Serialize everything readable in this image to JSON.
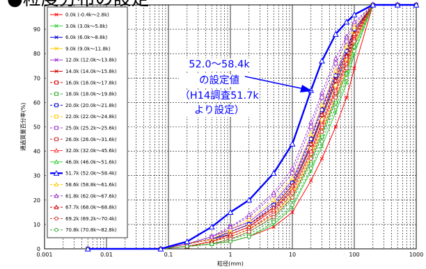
{
  "title": "●粒度分布の設定",
  "chart_data": {
    "type": "line",
    "x_scale": "log",
    "xlim": [
      0.001,
      1000
    ],
    "ylim": [
      0,
      100
    ],
    "xlabel": "粒径(mm)",
    "ylabel": "通過質量百分率(%)",
    "x_ticks": [
      "0.001",
      "0.01",
      "0.1",
      "1",
      "10",
      "100",
      "1000"
    ],
    "y_ticks": [
      "0",
      "10",
      "20",
      "30",
      "40",
      "50",
      "60",
      "70",
      "80",
      "90"
    ],
    "grid": true,
    "legend_position": "left",
    "x": [
      0.005,
      0.075,
      0.2,
      0.5,
      1,
      2,
      5,
      10,
      20,
      30,
      50,
      75,
      100,
      200,
      500,
      1000
    ],
    "series": [
      {
        "name": "0.0k (-0.4k～2.8k)",
        "color": "#ff0000",
        "dash": false,
        "marker": "x",
        "values": [
          0,
          0,
          1,
          2,
          3,
          5,
          9,
          15,
          28,
          37,
          50,
          62,
          74,
          100,
          100,
          100
        ]
      },
      {
        "name": "3.0k (3.0k～5.8k)",
        "color": "#33cc33",
        "dash": false,
        "marker": "x",
        "values": [
          0,
          0,
          1,
          2,
          3,
          5,
          10,
          17,
          32,
          42,
          56,
          68,
          80,
          100,
          100,
          100
        ]
      },
      {
        "name": "6.0k (6.0k～8.8k)",
        "color": "#0000cc",
        "dash": false,
        "marker": "x",
        "values": [
          0,
          0,
          2,
          4,
          6,
          9,
          16,
          25,
          42,
          54,
          68,
          78,
          88,
          100,
          100,
          100
        ]
      },
      {
        "name": "9.0k (9.0k～11.8k)",
        "color": "#ffcc00",
        "dash": false,
        "marker": "x",
        "values": [
          0,
          0,
          1,
          3,
          5,
          8,
          14,
          22,
          38,
          49,
          62,
          73,
          84,
          100,
          100,
          100
        ]
      },
      {
        "name": "12.0k (12.0k～13.8k)",
        "color": "#9933cc",
        "dash": false,
        "marker": "x",
        "values": [
          0,
          0,
          2,
          5,
          8,
          11,
          19,
          28,
          46,
          58,
          72,
          82,
          90,
          100,
          100,
          100
        ]
      },
      {
        "name": "14.0k (14.0k～15.8k)",
        "color": "#cc0000",
        "dash": false,
        "marker": "x",
        "values": [
          0,
          0,
          2,
          4,
          7,
          10,
          17,
          26,
          43,
          55,
          70,
          80,
          89,
          100,
          100,
          100
        ]
      },
      {
        "name": "16.0k (16.0k～17.8k)",
        "color": "#cc0000",
        "dash": true,
        "marker": "square",
        "values": [
          0,
          0,
          1,
          3,
          5,
          8,
          15,
          24,
          40,
          52,
          66,
          77,
          87,
          100,
          100,
          100
        ]
      },
      {
        "name": "18.0k (18.0k～19.8k)",
        "color": "#33aa33",
        "dash": true,
        "marker": "square",
        "values": [
          0,
          0,
          1,
          2,
          4,
          6,
          12,
          20,
          35,
          46,
          60,
          72,
          83,
          100,
          100,
          100
        ]
      },
      {
        "name": "20.0k (20.0k～21.8k)",
        "color": "#0000cc",
        "dash": true,
        "marker": "square",
        "values": [
          0,
          0,
          2,
          4,
          7,
          10,
          18,
          27,
          45,
          57,
          71,
          81,
          90,
          100,
          100,
          100
        ]
      },
      {
        "name": "22.0k (22.0k～24.8k)",
        "color": "#ffcc00",
        "dash": true,
        "marker": "square",
        "values": [
          0,
          0,
          1,
          3,
          6,
          9,
          16,
          25,
          41,
          53,
          67,
          78,
          88,
          100,
          100,
          100
        ]
      },
      {
        "name": "25.0k (25.2k～25.6k)",
        "color": "#9933cc",
        "dash": true,
        "marker": "square",
        "values": [
          0,
          0,
          2,
          5,
          9,
          13,
          22,
          31,
          50,
          62,
          76,
          85,
          92,
          100,
          100,
          100
        ]
      },
      {
        "name": "26.0k (26.0k～31.6k)",
        "color": "#cc3333",
        "dash": true,
        "marker": "square",
        "values": [
          0,
          0,
          1,
          3,
          5,
          8,
          14,
          23,
          39,
          50,
          64,
          75,
          86,
          100,
          100,
          100
        ]
      },
      {
        "name": "32.0k (32.0k～45.6k)",
        "color": "#ff3333",
        "dash": false,
        "marker": "triangle",
        "values": [
          0,
          0,
          1,
          3,
          6,
          9,
          16,
          24,
          40,
          51,
          65,
          76,
          86,
          100,
          100,
          100
        ]
      },
      {
        "name": "46.0k (46.0k～51.6k)",
        "color": "#33cc33",
        "dash": false,
        "marker": "triangle",
        "values": [
          0,
          0,
          1,
          2,
          4,
          7,
          13,
          21,
          36,
          47,
          61,
          72,
          83,
          100,
          100,
          100
        ]
      },
      {
        "name": "51.7k (52.0k～58.4k)",
        "color": "#0000ff",
        "dash": false,
        "marker": "triangle",
        "bold": true,
        "values": [
          0,
          0,
          3,
          9,
          15,
          20,
          31,
          43,
          65,
          77,
          88,
          93,
          96,
          100,
          100,
          100
        ]
      },
      {
        "name": "58.6k (58.8k～61.6k)",
        "color": "#ffcc00",
        "dash": true,
        "marker": "triangle",
        "values": [
          0,
          0,
          2,
          4,
          8,
          12,
          20,
          29,
          47,
          59,
          73,
          83,
          91,
          100,
          100,
          100
        ]
      },
      {
        "name": "61.8k (62.0k～67.6k)",
        "color": "#9933cc",
        "dash": true,
        "marker": "triangle",
        "values": [
          0,
          0,
          2,
          5,
          9,
          14,
          23,
          33,
          52,
          64,
          78,
          87,
          93,
          100,
          100,
          100
        ]
      },
      {
        "name": "67.7k (68.0k～68.8k)",
        "color": "#cc0000",
        "dash": true,
        "marker": "triangle",
        "values": [
          0,
          0,
          1,
          3,
          6,
          9,
          17,
          26,
          43,
          55,
          69,
          79,
          88,
          100,
          100,
          100
        ]
      },
      {
        "name": "69.2k (69.2k～70.4k)",
        "color": "#cc3333",
        "dash": true,
        "marker": "circle",
        "values": [
          0,
          0,
          1,
          2,
          4,
          7,
          13,
          21,
          37,
          48,
          62,
          74,
          85,
          100,
          100,
          100
        ]
      },
      {
        "name": "70.8k (70.8k～82.8k)",
        "color": "#33aa33",
        "dash": true,
        "marker": "circle",
        "values": [
          0,
          0,
          1,
          2,
          3,
          5,
          11,
          18,
          33,
          44,
          58,
          70,
          81,
          100,
          100,
          100
        ]
      }
    ],
    "annotation": {
      "lines": [
        "52.0～58.4k",
        "の設定値",
        "（H14調査51.7k",
        "より設定）"
      ],
      "color": "#0000ff"
    }
  }
}
